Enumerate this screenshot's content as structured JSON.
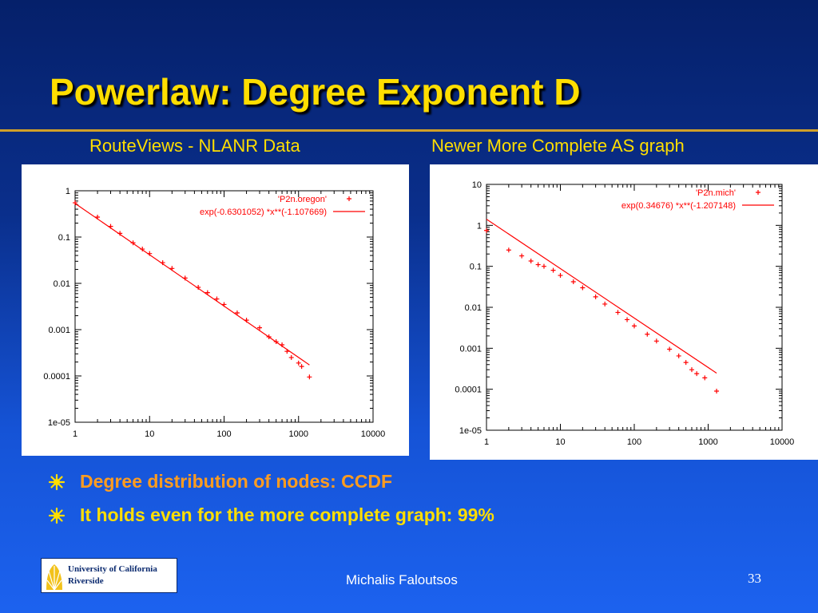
{
  "title": "Powerlaw: Degree Exponent D",
  "subtitles": {
    "left": "RouteViews - NLANR Data",
    "right": "Newer More Complete AS graph"
  },
  "bullets": [
    "Degree distribution of nodes: CCDF",
    "It holds even for the more complete graph: 99%"
  ],
  "footer": {
    "author": "Michalis Faloutsos",
    "page": "33",
    "logo_line1": "University of California",
    "logo_line2": "Riverside"
  },
  "colors": {
    "title": "#ffde00",
    "bullet1": "#ff9c1f",
    "bullet2": "#ffde00",
    "series": "#ff0000"
  },
  "chart_data": [
    {
      "type": "scatter",
      "xscale": "log",
      "yscale": "log",
      "xlim": [
        1,
        10000
      ],
      "ylim": [
        1e-05,
        1
      ],
      "xticks": [
        "1",
        "10",
        "100",
        "1000",
        "10000"
      ],
      "yticks": [
        "1",
        "0.1",
        "0.01",
        "0.001",
        "0.0001",
        "1e-05"
      ],
      "legend_position": "top-right",
      "grid": false,
      "series": [
        {
          "name": "'P2n.oregon'",
          "kind": "points",
          "x": [
            1,
            2,
            3,
            4,
            6,
            8,
            10,
            15,
            20,
            30,
            45,
            60,
            80,
            100,
            150,
            200,
            300,
            400,
            500,
            600,
            700,
            800,
            1000,
            1100,
            1400
          ],
          "y": [
            0.55,
            0.27,
            0.17,
            0.12,
            0.075,
            0.055,
            0.044,
            0.028,
            0.021,
            0.013,
            0.0082,
            0.0063,
            0.0046,
            0.0035,
            0.0023,
            0.0016,
            0.0011,
            0.0007,
            0.00055,
            0.00047,
            0.00034,
            0.00025,
            0.00019,
            0.00016,
            9.5e-05
          ]
        },
        {
          "name": "exp(-0.6301052) *x**(-1.107669)",
          "kind": "line",
          "x": [
            1,
            1400
          ],
          "y": [
            0.5325,
            0.0001728
          ]
        }
      ]
    },
    {
      "type": "scatter",
      "xscale": "log",
      "yscale": "log",
      "xlim": [
        1,
        10000
      ],
      "ylim": [
        1e-05,
        10
      ],
      "xticks": [
        "1",
        "10",
        "100",
        "1000",
        "10000"
      ],
      "yticks": [
        "10",
        "1",
        "0.1",
        "0.01",
        "0.001",
        "0.0001",
        "1e-05"
      ],
      "legend_position": "top-right",
      "grid": false,
      "series": [
        {
          "name": "'P2n.mich'",
          "kind": "points",
          "x": [
            1,
            2,
            3,
            4,
            5,
            6,
            8,
            10,
            15,
            20,
            30,
            40,
            60,
            80,
            100,
            150,
            200,
            300,
            400,
            500,
            600,
            700,
            900,
            1300
          ],
          "y": [
            0.75,
            0.25,
            0.18,
            0.135,
            0.11,
            0.1,
            0.08,
            0.06,
            0.042,
            0.03,
            0.018,
            0.012,
            0.0075,
            0.005,
            0.0035,
            0.0022,
            0.0015,
            0.00095,
            0.00065,
            0.00045,
            0.0003,
            0.00024,
            0.00019,
            9e-05
          ]
        },
        {
          "name": "exp(0.34676) *x**(-1.207148)",
          "kind": "line",
          "x": [
            1,
            1300
          ],
          "y": [
            1.4145,
            0.0002476
          ]
        }
      ]
    }
  ]
}
